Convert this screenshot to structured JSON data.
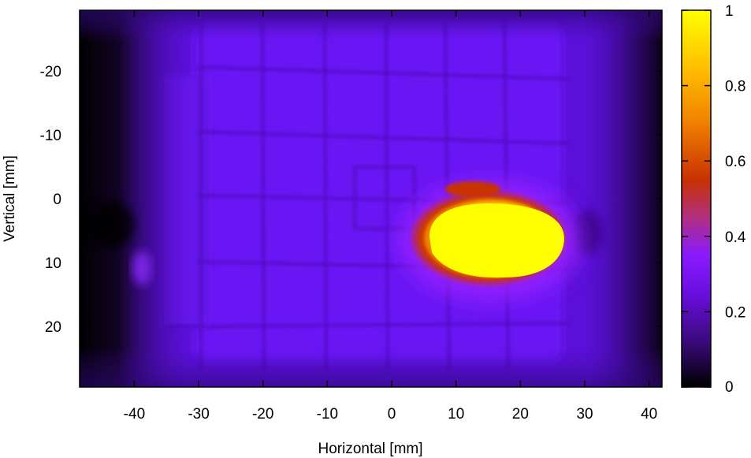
{
  "chart_data": {
    "type": "heatmap",
    "title": "",
    "xlabel": "Horizontal [mm]",
    "ylabel": "Vertical [mm]",
    "xlim": [
      -48.5,
      42
    ],
    "ylim": [
      -29.5,
      29.5
    ],
    "y_inverted": true,
    "xticks": [
      -40,
      -30,
      -20,
      -10,
      0,
      10,
      20,
      30,
      40
    ],
    "yticks": [
      -20,
      -10,
      0,
      10,
      20
    ],
    "colorbar": {
      "range": [
        0,
        1
      ],
      "ticks": [
        0,
        0.2,
        0.4,
        0.6,
        0.8,
        1
      ],
      "colormap": [
        "#000000",
        "#3a0a7a",
        "#6a0ee0",
        "#8a1aff",
        "#b03080",
        "#d04000",
        "#f08000",
        "#ffc000",
        "#ffff00"
      ]
    },
    "background_level": 0.2,
    "hot_spot": {
      "x_range": [
        3,
        27
      ],
      "y_range": [
        1,
        13
      ],
      "center": [
        16,
        7
      ],
      "peak": 1.0
    }
  }
}
